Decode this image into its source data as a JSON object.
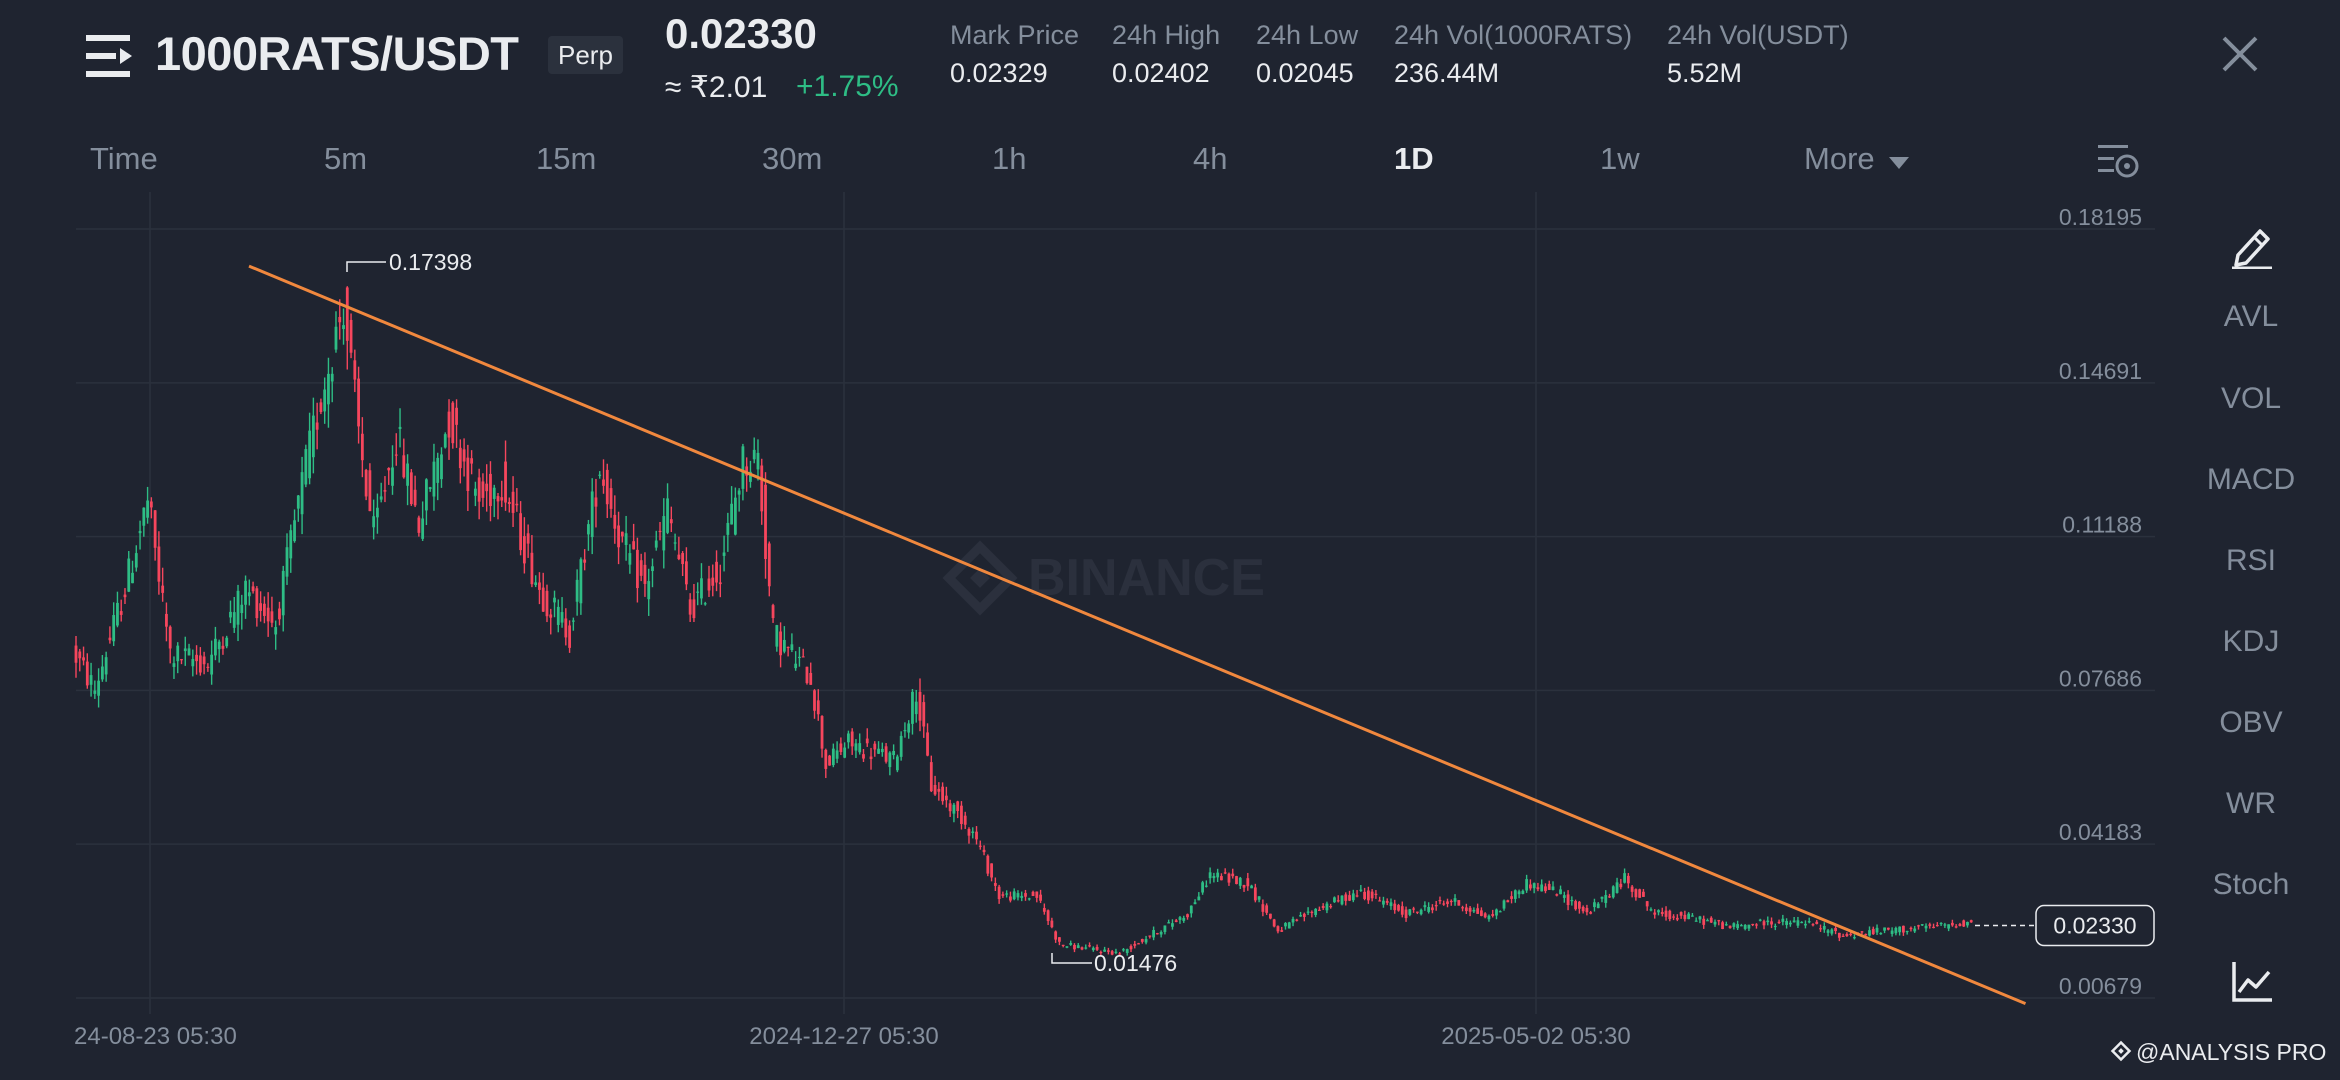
{
  "header": {
    "pair": "1000RATS/USDT",
    "contract_tag": "Perp",
    "last_price": "0.02330",
    "fiat_price": "≈ ₹2.01",
    "change": "+1.75%",
    "stats": [
      {
        "label": "Mark Price",
        "value": "0.02329"
      },
      {
        "label": "24h High",
        "value": "0.02402"
      },
      {
        "label": "24h Low",
        "value": "0.02045"
      },
      {
        "label": "24h Vol(1000RATS)",
        "value": "236.44M"
      },
      {
        "label": "24h Vol(USDT)",
        "value": "5.52M"
      }
    ]
  },
  "tabs": [
    "Time",
    "5m",
    "15m",
    "30m",
    "1h",
    "4h",
    "1D",
    "1w",
    "More"
  ],
  "active_tab": "1D",
  "indicators": [
    "AVL",
    "VOL",
    "MACD",
    "RSI",
    "KDJ",
    "OBV",
    "WR",
    "Stoch"
  ],
  "watermark": "BINANCE",
  "footer_brand": "@ANALYSIS PRO",
  "colors": {
    "up": "#2ebd85",
    "down": "#f6465d",
    "trendline": "#f0883e",
    "background": "#1f2430"
  },
  "chart_data": {
    "type": "candlestick",
    "y_ticks": [
      "0.18195",
      "0.14691",
      "0.11188",
      "0.07686",
      "0.04183",
      "0.00679"
    ],
    "x_ticks": [
      "24-08-23 05:30",
      "2024-12-27 05:30",
      "2025-05-02 05:30"
    ],
    "high_marker": "0.17398",
    "low_marker": "0.01476",
    "current_price": "0.02330",
    "trendline": {
      "from": {
        "date": "2024-09-10",
        "price": 0.1735
      },
      "to": {
        "date": "2025-07-30",
        "price": 0.0055
      }
    },
    "grid": true
  }
}
